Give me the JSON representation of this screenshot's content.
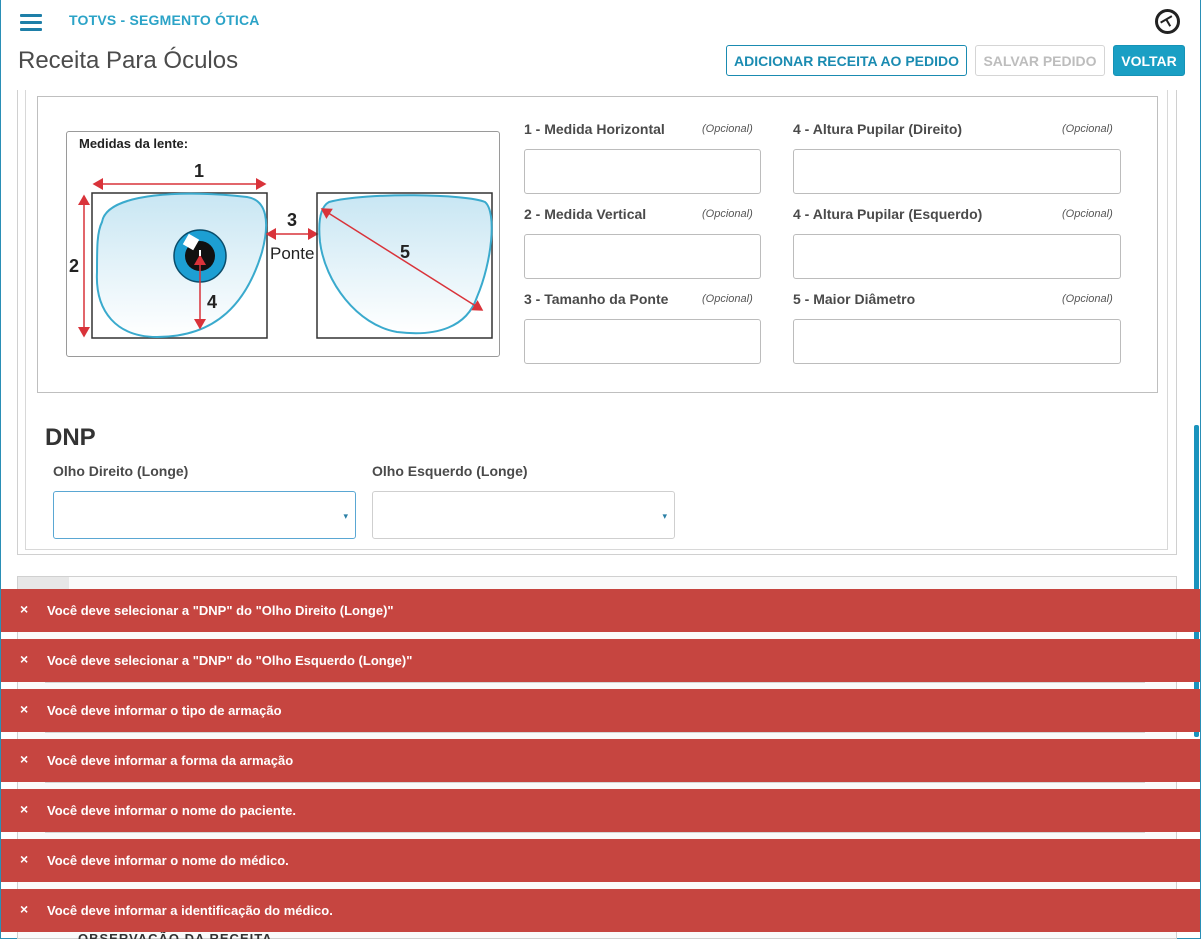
{
  "header": {
    "brand": "TOTVS - SEGMENTO ÓTICA",
    "page_title": "Receita Para Óculos",
    "buttons": {
      "add_label": "ADICIONAR RECEITA AO PEDIDO",
      "save_label": "SALVAR PEDIDO",
      "back_label": "VOLTAR"
    }
  },
  "diagram": {
    "title": "Medidas da lente:",
    "labels": {
      "one": "1",
      "two": "2",
      "three": "3",
      "four": "4",
      "five": "5",
      "bridge": "Ponte"
    }
  },
  "fields": [
    {
      "label": "1 - Medida Horizontal",
      "optional": "(Opcional)",
      "value": ""
    },
    {
      "label": "2 - Medida Vertical",
      "optional": "(Opcional)",
      "value": ""
    },
    {
      "label": "3 - Tamanho da Ponte",
      "optional": "(Opcional)",
      "value": ""
    },
    {
      "label": "4 - Altura Pupilar (Direito)",
      "optional": "(Opcional)",
      "value": ""
    },
    {
      "label": "4 - Altura Pupilar (Esquerdo)",
      "optional": "(Opcional)",
      "value": ""
    },
    {
      "label": "5 - Maior Diâmetro",
      "optional": "(Opcional)",
      "value": ""
    }
  ],
  "dnp": {
    "title": "DNP",
    "right_label": "Olho Direito (Longe)",
    "left_label": "Olho Esquerdo (Longe)",
    "right_value": "",
    "left_value": ""
  },
  "background_text": "OBSERVAÇÃO DA RECEITA",
  "toasts": [
    {
      "close": "×",
      "message": "Você deve selecionar a \"DNP\" do \"Olho Direito (Longe)\""
    },
    {
      "close": "×",
      "message": "Você deve selecionar a \"DNP\" do \"Olho Esquerdo (Longe)\""
    },
    {
      "close": "×",
      "message": "Você deve informar o tipo de armação"
    },
    {
      "close": "×",
      "message": "Você deve informar a forma da armação"
    },
    {
      "close": "×",
      "message": "Você deve informar o nome do paciente."
    },
    {
      "close": "×",
      "message": "Você deve informar o nome do médico."
    },
    {
      "close": "×",
      "message": "Você deve informar a identificação do médico."
    }
  ],
  "colors": {
    "brand": "#2ba3c7",
    "primary": "#1a9fc4",
    "error": "#c64540"
  },
  "icons": {
    "menu": "hamburger-menu-icon",
    "logo": "totvs-logo-icon",
    "caret": "▾"
  }
}
